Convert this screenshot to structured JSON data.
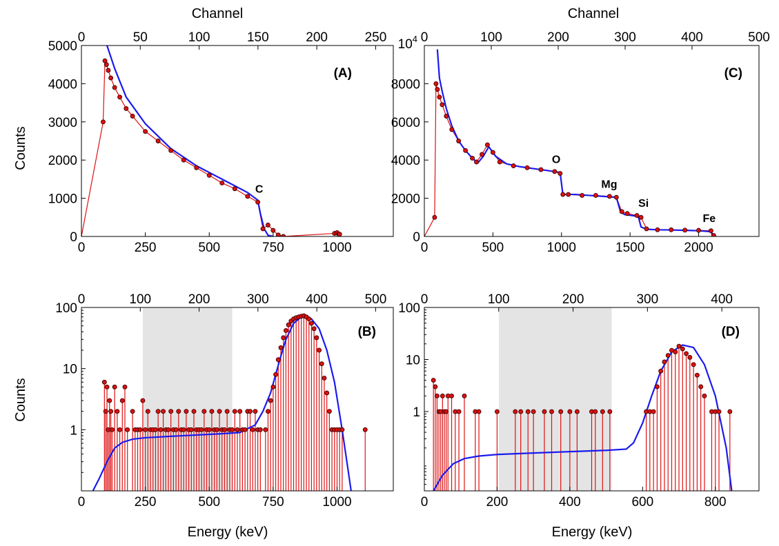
{
  "colors": {
    "data": "#dd1111",
    "fit": "#1a1aee",
    "marker_edge": "#3a0000",
    "shade": "#e4e4e4"
  },
  "chart_data": [
    {
      "id": "A",
      "type": "scatter",
      "panel_label": "(A)",
      "ylabel": "Counts",
      "top_xlabel": "Channel",
      "xlim": [
        0,
        1220
      ],
      "ylim": [
        0,
        5000
      ],
      "yscale": "linear",
      "top_xlim": [
        0,
        265
      ],
      "xticks": [
        0,
        250,
        500,
        750,
        1000
      ],
      "yticks": [
        0,
        1000,
        2000,
        3000,
        4000,
        5000
      ],
      "top_ticks": [
        0,
        50,
        100,
        150,
        200,
        250
      ],
      "annotations": [
        {
          "text": "C",
          "x": 680,
          "y": 1150
        }
      ],
      "series": [
        {
          "role": "data",
          "x": [
            85,
            92,
            98,
            105,
            115,
            130,
            150,
            175,
            200,
            250,
            300,
            350,
            400,
            450,
            500,
            550,
            600,
            650,
            690,
            710,
            730,
            750,
            770,
            790,
            990,
            1000,
            1010
          ],
          "y": [
            3000,
            4600,
            4500,
            4350,
            4150,
            3900,
            3650,
            3350,
            3150,
            2750,
            2500,
            2250,
            2000,
            1800,
            1600,
            1400,
            1250,
            1050,
            900,
            200,
            300,
            160,
            40,
            0,
            80,
            100,
            60
          ]
        },
        {
          "role": "fit",
          "x": [
            100,
            130,
            175,
            250,
            350,
            450,
            550,
            650,
            690,
            700,
            715,
            730,
            750
          ],
          "y": [
            5000,
            4400,
            3650,
            2950,
            2300,
            1850,
            1500,
            1150,
            950,
            600,
            200,
            30,
            0
          ]
        }
      ]
    },
    {
      "id": "C",
      "type": "scatter",
      "panel_label": "(C)",
      "top_xlabel": "Channel",
      "xlim": [
        0,
        2440
      ],
      "ylim": [
        0,
        10000
      ],
      "yscale": "linear",
      "top_xlim": [
        0,
        500
      ],
      "xticks": [
        0,
        500,
        1000,
        1500,
        2000
      ],
      "yticks": [
        0,
        2000,
        4000,
        6000,
        8000
      ],
      "ytick_top_label": "10",
      "ytick_top_exp": "4",
      "top_ticks": [
        0,
        100,
        200,
        300,
        400,
        500
      ],
      "annotations": [
        {
          "text": "O",
          "x": 930,
          "y": 3850
        },
        {
          "text": "Mg",
          "x": 1290,
          "y": 2550
        },
        {
          "text": "Si",
          "x": 1560,
          "y": 1550
        },
        {
          "text": "Fe",
          "x": 2030,
          "y": 750
        }
      ],
      "series": [
        {
          "role": "data",
          "x": [
            75,
            85,
            95,
            110,
            130,
            160,
            200,
            250,
            300,
            350,
            380,
            420,
            460,
            500,
            550,
            650,
            750,
            850,
            950,
            990,
            1010,
            1050,
            1150,
            1250,
            1350,
            1400,
            1440,
            1480,
            1550,
            1580,
            1620,
            1700,
            1800,
            1900,
            2000,
            2090,
            2110
          ],
          "y": [
            1000,
            8000,
            7700,
            7300,
            6900,
            6300,
            5600,
            5000,
            4500,
            4100,
            3900,
            4300,
            4800,
            4400,
            3900,
            3700,
            3600,
            3500,
            3400,
            3300,
            2200,
            2200,
            2150,
            2150,
            2100,
            2050,
            1300,
            1200,
            1100,
            1000,
            400,
            350,
            350,
            330,
            320,
            300,
            50
          ]
        },
        {
          "role": "fit",
          "x": [
            95,
            110,
            130,
            160,
            200,
            250,
            300,
            350,
            390,
            430,
            470,
            520,
            600,
            700,
            800,
            900,
            990,
            1010,
            1100,
            1200,
            1300,
            1400,
            1430,
            1460,
            1560,
            1580,
            1620,
            1700,
            1800,
            1900,
            2000,
            2090,
            2105
          ],
          "y": [
            9800,
            8300,
            7600,
            6700,
            5800,
            5000,
            4500,
            4100,
            3850,
            4200,
            4700,
            4200,
            3800,
            3650,
            3550,
            3450,
            3350,
            2200,
            2200,
            2150,
            2100,
            2050,
            1300,
            1150,
            1050,
            500,
            380,
            350,
            340,
            320,
            300,
            250,
            0
          ]
        }
      ]
    },
    {
      "id": "B",
      "type": "scatter",
      "panel_label": "(B)",
      "ylabel": "Counts",
      "xlabel": "Energy (keV)",
      "xlim": [
        0,
        1220
      ],
      "ylim": [
        0.1,
        100
      ],
      "yscale": "log",
      "top_xlim": [
        0,
        530
      ],
      "xticks": [
        0,
        250,
        500,
        750,
        1000
      ],
      "yticks": [
        1,
        10,
        100
      ],
      "ytick_labels": [
        "1",
        "10",
        "100"
      ],
      "top_ticks": [
        0,
        100,
        200,
        300,
        400,
        500
      ],
      "shade_x": [
        240,
        590
      ],
      "series": [
        {
          "role": "data",
          "x": [
            90,
            95,
            100,
            105,
            110,
            115,
            120,
            130,
            140,
            150,
            160,
            170,
            180,
            200,
            210,
            220,
            230,
            240,
            250,
            260,
            270,
            280,
            290,
            300,
            310,
            320,
            330,
            340,
            350,
            360,
            370,
            380,
            390,
            400,
            410,
            420,
            430,
            440,
            450,
            460,
            470,
            480,
            490,
            500,
            510,
            520,
            530,
            540,
            550,
            560,
            570,
            580,
            590,
            600,
            610,
            620,
            630,
            640,
            650,
            660,
            670,
            680,
            690,
            700,
            720,
            730,
            740,
            750,
            760,
            770,
            780,
            790,
            800,
            810,
            820,
            830,
            840,
            850,
            860,
            870,
            880,
            890,
            900,
            910,
            920,
            930,
            940,
            950,
            960,
            970,
            980,
            990,
            1000,
            1010,
            1020,
            1110
          ],
          "y": [
            6,
            2,
            5,
            1,
            3,
            2,
            1,
            5,
            2,
            1,
            3,
            5,
            1,
            2,
            1,
            1,
            1,
            3,
            1,
            2,
            1,
            1,
            1,
            2,
            1,
            2,
            1,
            1,
            2,
            1,
            1,
            2,
            1,
            1,
            2,
            1,
            1,
            2,
            1,
            1,
            1,
            2,
            1,
            1,
            2,
            1,
            1,
            2,
            1,
            1,
            2,
            1,
            1,
            2,
            1,
            2,
            1,
            1,
            2,
            2,
            1,
            2,
            1,
            1,
            1,
            2,
            3,
            5,
            8,
            14,
            22,
            32,
            42,
            52,
            60,
            65,
            68,
            70,
            72,
            73,
            70,
            65,
            55,
            45,
            32,
            20,
            12,
            7,
            4,
            2,
            1,
            1,
            1,
            1,
            1,
            1
          ]
        },
        {
          "role": "fit",
          "x": [
            45,
            70,
            100,
            130,
            160,
            200,
            250,
            350,
            450,
            550,
            620,
            680,
            710,
            740,
            760,
            780,
            800,
            830,
            860,
            880,
            900,
            930,
            960,
            990,
            1020,
            1055
          ],
          "y": [
            0.1,
            0.16,
            0.3,
            0.5,
            0.62,
            0.7,
            0.74,
            0.78,
            0.82,
            0.86,
            0.9,
            1.2,
            2,
            4,
            8,
            16,
            30,
            55,
            70,
            72,
            65,
            45,
            20,
            6,
            1,
            0.1
          ]
        }
      ]
    },
    {
      "id": "D",
      "type": "scatter",
      "panel_label": "(D)",
      "xlabel": "Energy (keV)",
      "xlim": [
        0,
        920
      ],
      "ylim": [
        0.03,
        100
      ],
      "yscale": "log",
      "top_xlim": [
        0,
        450
      ],
      "xticks": [
        0,
        200,
        400,
        600,
        800
      ],
      "yticks": [
        1,
        10,
        100
      ],
      "ytick_labels": [
        "1",
        "10",
        "100"
      ],
      "top_ticks": [
        0,
        100,
        200,
        300,
        400
      ],
      "shade_x": [
        205,
        515
      ],
      "series": [
        {
          "role": "data",
          "x": [
            25,
            30,
            35,
            40,
            45,
            50,
            55,
            60,
            65,
            75,
            85,
            95,
            110,
            140,
            150,
            200,
            250,
            265,
            285,
            300,
            330,
            350,
            375,
            400,
            420,
            460,
            470,
            490,
            510,
            610,
            620,
            630,
            640,
            650,
            660,
            670,
            680,
            690,
            700,
            710,
            720,
            730,
            740,
            750,
            760,
            770,
            790,
            800,
            810,
            840
          ],
          "y": [
            4,
            3,
            2,
            1,
            1,
            2,
            1,
            1,
            2,
            2,
            1,
            1,
            2,
            1,
            1,
            1,
            1,
            1,
            1,
            1,
            1,
            1,
            1,
            1,
            1,
            1,
            1,
            1,
            1,
            1,
            1,
            1,
            3,
            6,
            9,
            12,
            15,
            14,
            18,
            16,
            13,
            11,
            8,
            5,
            3,
            2,
            1,
            1,
            1,
            1
          ]
        },
        {
          "role": "fit",
          "x": [
            25,
            50,
            80,
            110,
            150,
            200,
            300,
            400,
            500,
            555,
            575,
            600,
            625,
            650,
            680,
            710,
            740,
            770,
            800,
            830,
            845
          ],
          "y": [
            0.03,
            0.06,
            0.1,
            0.125,
            0.14,
            0.15,
            0.16,
            0.17,
            0.18,
            0.19,
            0.25,
            0.6,
            2,
            6,
            14,
            19,
            17,
            8,
            2,
            0.2,
            0.03
          ]
        }
      ]
    }
  ]
}
